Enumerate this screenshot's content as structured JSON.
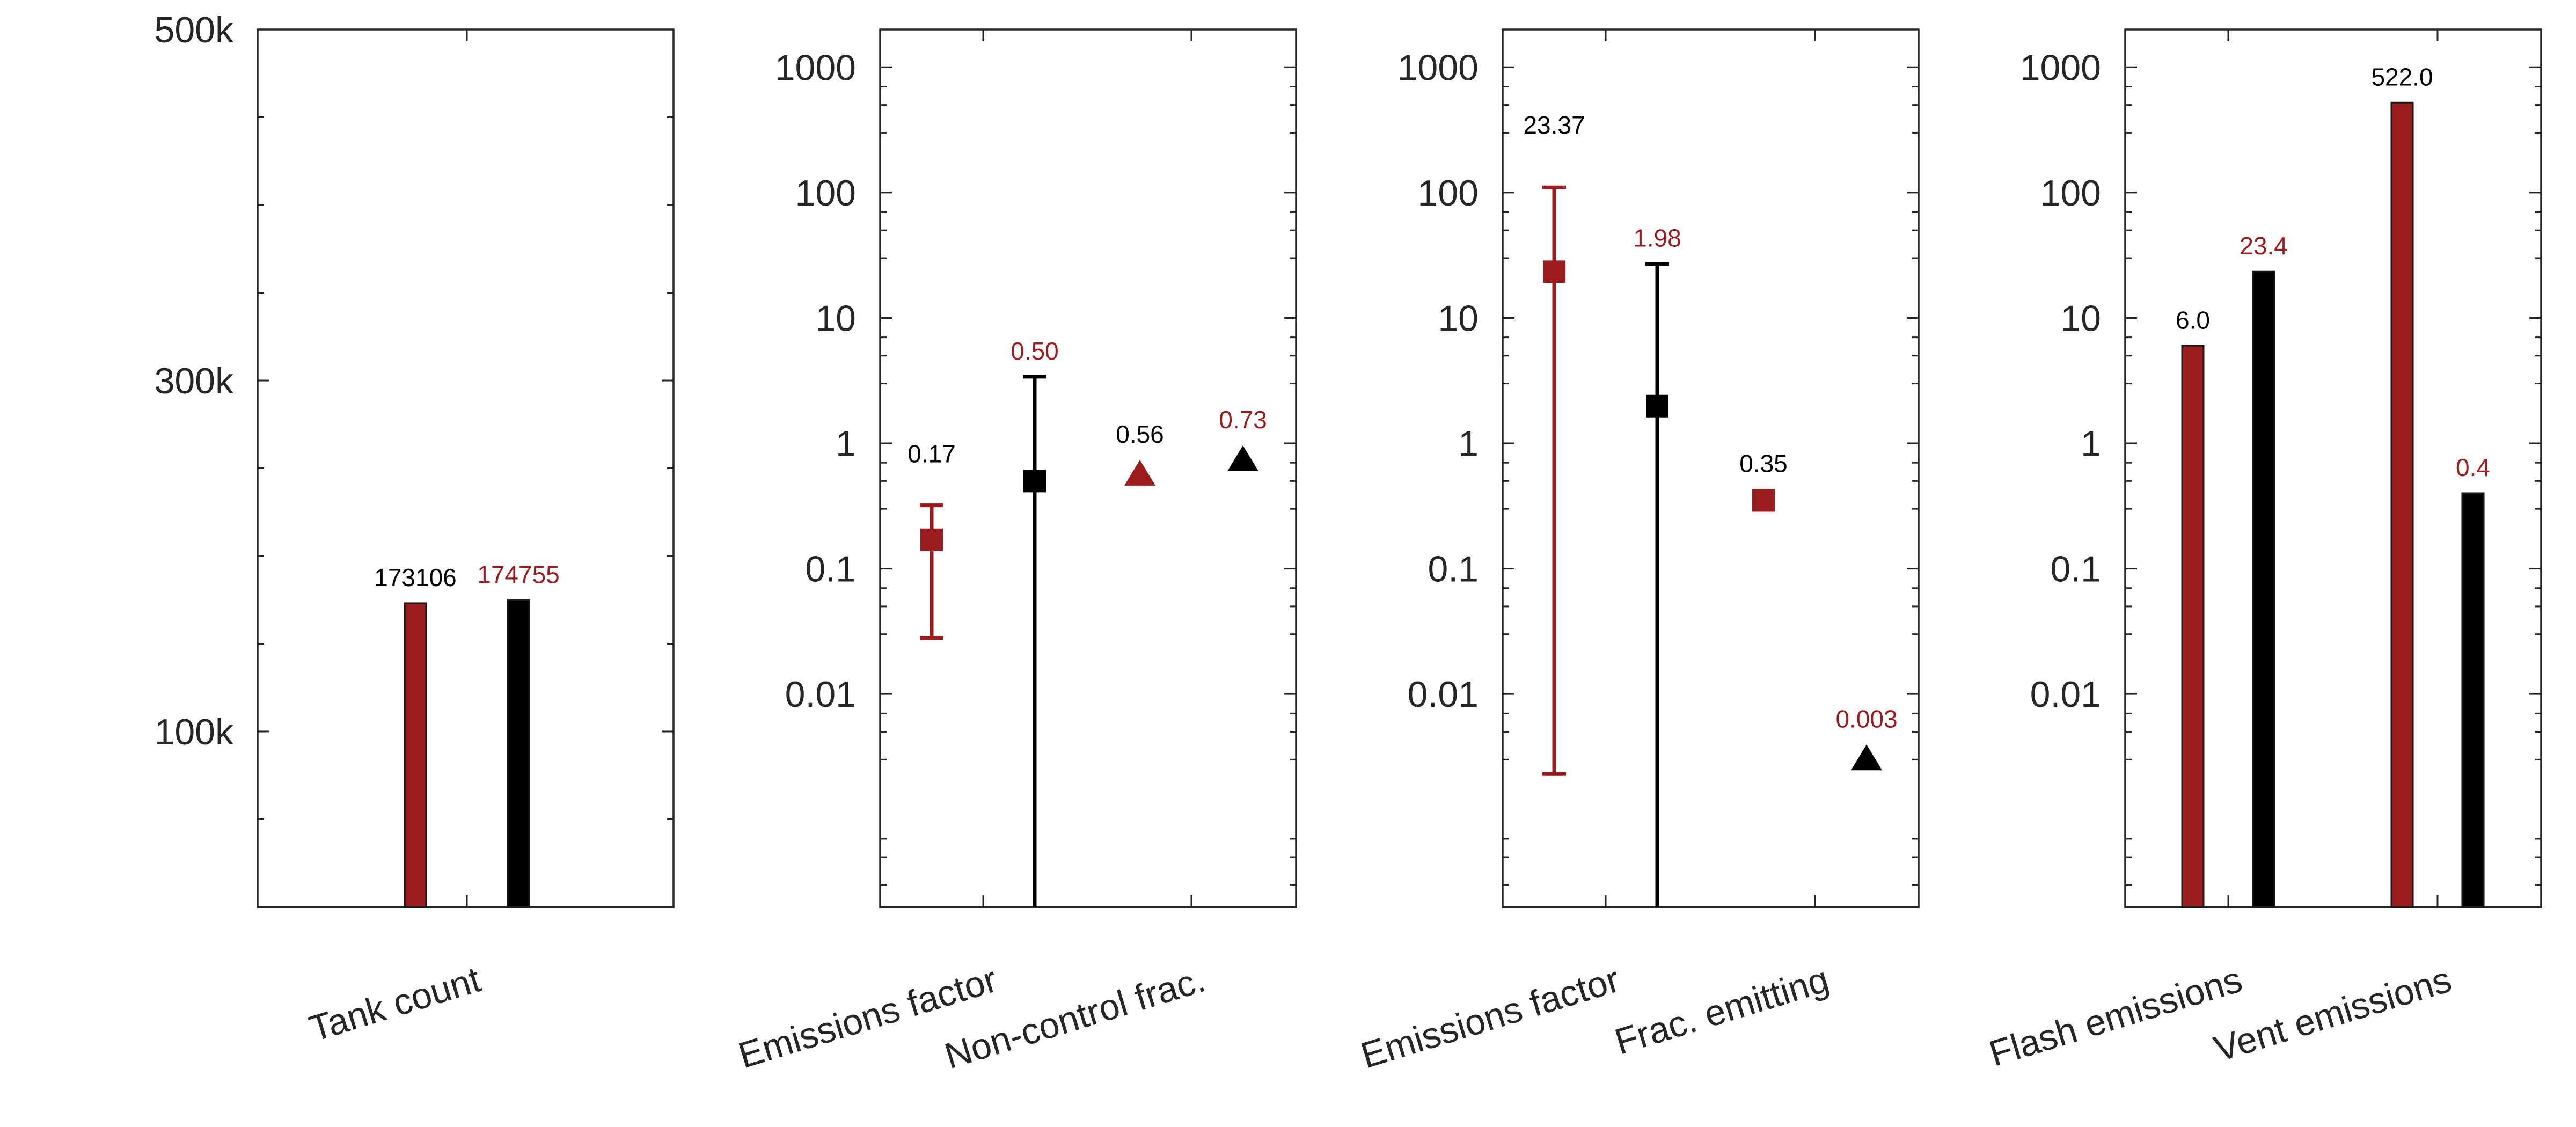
{
  "colors": {
    "red": "#9b1c1f",
    "black": "#000000"
  },
  "chart_data": [
    {
      "type": "bar",
      "yscale": "linear",
      "ylim": [
        0,
        500000
      ],
      "y_ticks": [
        100000,
        300000,
        500000
      ],
      "y_tick_labels": [
        "100k",
        "300k",
        "500k"
      ],
      "categories": [
        "Tank count"
      ],
      "series": [
        {
          "color": "red",
          "values": [
            173106
          ],
          "labels": [
            "173106"
          ],
          "label_color": "black"
        },
        {
          "color": "black",
          "values": [
            174755
          ],
          "labels": [
            "174755"
          ],
          "label_color": "red"
        }
      ]
    },
    {
      "type": "scatter",
      "yscale": "log",
      "ylim": [
        0.0002,
        2000
      ],
      "y_ticks": [
        0.01,
        0.1,
        1,
        10,
        100,
        1000
      ],
      "y_tick_labels": [
        "0.01",
        "0.1",
        "1",
        "10",
        "100",
        "1000"
      ],
      "categories": [
        "Emissions factor",
        "Non-control frac."
      ],
      "series": [
        {
          "color": "red",
          "marker": "square",
          "values": [
            0.17,
            null
          ],
          "err_low": [
            0.028,
            null
          ],
          "err_high": [
            0.32,
            null
          ],
          "labels": [
            "0.17",
            null
          ],
          "label_color": "black"
        },
        {
          "color": "black",
          "marker": "square",
          "values": [
            0.5,
            null
          ],
          "err_low": [
            0.0002,
            null
          ],
          "err_high": [
            3.4,
            null
          ],
          "labels": [
            "0.50",
            null
          ],
          "label_color": "red"
        },
        {
          "color": "red",
          "marker": "triangle",
          "values": [
            null,
            0.56
          ],
          "labels": [
            null,
            "0.56"
          ],
          "label_color": "black"
        },
        {
          "color": "black",
          "marker": "triangle",
          "values": [
            null,
            0.73
          ],
          "labels": [
            null,
            "0.73"
          ],
          "label_color": "red"
        }
      ]
    },
    {
      "type": "scatter",
      "yscale": "log",
      "ylim": [
        0.0002,
        2000
      ],
      "y_ticks": [
        0.01,
        0.1,
        1,
        10,
        100,
        1000
      ],
      "y_tick_labels": [
        "0.01",
        "0.1",
        "1",
        "10",
        "100",
        "1000"
      ],
      "categories": [
        "Emissions factor",
        "Frac. emitting"
      ],
      "series": [
        {
          "color": "red",
          "marker": "square",
          "values": [
            23.37,
            null
          ],
          "err_low": [
            0.0023,
            null
          ],
          "err_high": [
            110,
            null
          ],
          "labels": [
            "23.37",
            null
          ],
          "label_color": "black"
        },
        {
          "color": "black",
          "marker": "square",
          "values": [
            1.98,
            null
          ],
          "err_low": [
            0.0002,
            null
          ],
          "err_high": [
            27,
            null
          ],
          "labels": [
            "1.98",
            null
          ],
          "label_color": "red"
        },
        {
          "color": "red",
          "marker": "square",
          "values": [
            null,
            0.35
          ],
          "labels": [
            null,
            "0.35"
          ],
          "label_color": "black"
        },
        {
          "color": "black",
          "marker": "triangle",
          "values": [
            null,
            0.003
          ],
          "labels": [
            null,
            "0.003"
          ],
          "label_color": "red"
        }
      ]
    },
    {
      "type": "bar",
      "yscale": "log",
      "ylim": [
        0.0002,
        2000
      ],
      "y_ticks": [
        0.01,
        0.1,
        1,
        10,
        100,
        1000
      ],
      "y_tick_labels": [
        "0.01",
        "0.1",
        "1",
        "10",
        "100",
        "1000"
      ],
      "categories": [
        "Flash emissions",
        "Vent emissions"
      ],
      "series": [
        {
          "color": "red",
          "values": [
            6.0,
            522.0
          ],
          "labels": [
            "6.0",
            "522.0"
          ],
          "label_color": "black"
        },
        {
          "color": "black",
          "values": [
            23.4,
            0.4
          ],
          "labels": [
            "23.4",
            "0.4"
          ],
          "label_color": "red"
        }
      ]
    }
  ]
}
